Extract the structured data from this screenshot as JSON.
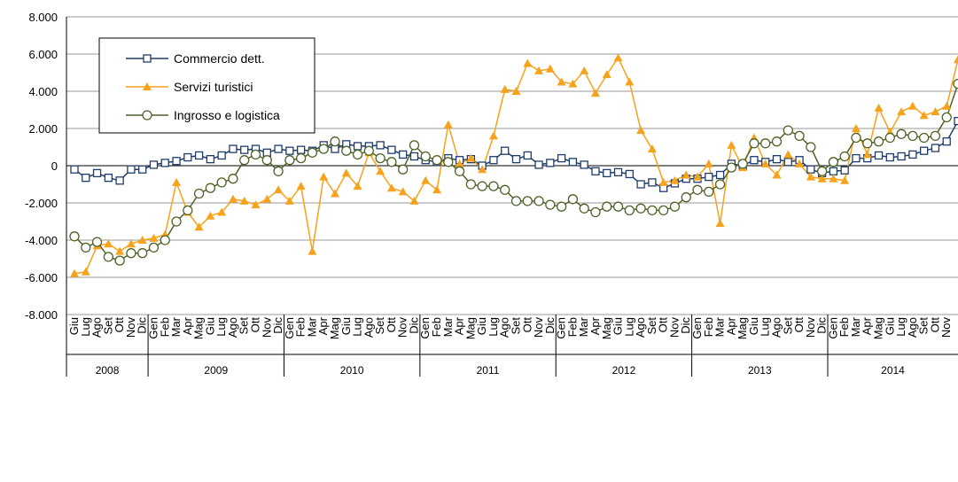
{
  "chart_data": {
    "type": "line",
    "categories": [
      "Giu",
      "Lug",
      "Ago",
      "Set",
      "Ott",
      "Nov",
      "Dic",
      "Gen",
      "Feb",
      "Mar",
      "Apr",
      "Mag",
      "Giu",
      "Lug",
      "Ago",
      "Set",
      "Ott",
      "Nov",
      "Dic",
      "Gen",
      "Feb",
      "Mar",
      "Apr",
      "Mag",
      "Giu",
      "Lug",
      "Ago",
      "Set",
      "Ott",
      "Nov",
      "Dic",
      "Gen",
      "Feb",
      "Mar",
      "Apr",
      "Mag",
      "Giu",
      "Lug",
      "Ago",
      "Set",
      "Ott",
      "Nov",
      "Dic",
      "Gen",
      "Feb",
      "Mar",
      "Apr",
      "Mag",
      "Giu",
      "Lug",
      "Ago",
      "Set",
      "Ott",
      "Nov",
      "Dic",
      "Gen",
      "Feb",
      "Mar",
      "Apr",
      "Mag",
      "Giu",
      "Lug",
      "Ago",
      "Set",
      "Ott",
      "Nov",
      "Dic",
      "Gen",
      "Feb",
      "Mar",
      "Apr",
      "Mag",
      "Giu",
      "Lug",
      "Ago",
      "Set",
      "Ott",
      "Nov",
      null
    ],
    "years": [
      "2008",
      "2009",
      "2010",
      "2011",
      "2012",
      "2013",
      "2014"
    ],
    "series": [
      {
        "name": "Commercio dett.",
        "color": "#1f3d6b",
        "marker": "square",
        "values": [
          -200,
          -650,
          -400,
          -650,
          -800,
          -200,
          -200,
          50,
          150,
          250,
          450,
          550,
          350,
          550,
          900,
          850,
          900,
          700,
          900,
          800,
          850,
          800,
          1100,
          900,
          1150,
          1050,
          1050,
          1100,
          850,
          600,
          500,
          300,
          200,
          400,
          300,
          350,
          0,
          300,
          800,
          350,
          550,
          50,
          150,
          400,
          200,
          50,
          -300,
          -400,
          -350,
          -450,
          -1000,
          -900,
          -1200,
          -950,
          -700,
          -700,
          -600,
          -500,
          100,
          0,
          300,
          200,
          350,
          200,
          300,
          -200,
          -400,
          -300,
          -250,
          400,
          400,
          550,
          450,
          500,
          600,
          800,
          950,
          1300,
          2400
        ]
      },
      {
        "name": "Servizi turistici",
        "color": "#f7a21b",
        "marker": "triangle",
        "values": [
          -5800,
          -5700,
          -4300,
          -4200,
          -4600,
          -4200,
          -4000,
          -3900,
          -3700,
          -900,
          -2500,
          -3300,
          -2700,
          -2500,
          -1800,
          -1900,
          -2100,
          -1800,
          -1300,
          -1900,
          -1100,
          -4600,
          -600,
          -1500,
          -400,
          -1100,
          700,
          -300,
          -1200,
          -1400,
          -1900,
          -800,
          -1300,
          2200,
          100,
          400,
          -200,
          1600,
          4100,
          4000,
          5500,
          5100,
          5200,
          4500,
          4400,
          5100,
          3900,
          4900,
          5800,
          4500,
          1900,
          900,
          -900,
          -800,
          -500,
          -600,
          100,
          -3100,
          1100,
          -100,
          1500,
          100,
          -500,
          600,
          100,
          -600,
          -700,
          -700,
          -800,
          2000,
          600,
          3100,
          1800,
          2900,
          3200,
          2700,
          2900,
          3200,
          5700
        ]
      },
      {
        "name": "Ingrosso e logistica",
        "color": "#4f6228",
        "marker": "circle",
        "values": [
          -3800,
          -4400,
          -4100,
          -4900,
          -5100,
          -4700,
          -4700,
          -4400,
          -4000,
          -3000,
          -2400,
          -1500,
          -1200,
          -900,
          -700,
          300,
          600,
          300,
          -300,
          300,
          400,
          700,
          900,
          1300,
          800,
          600,
          800,
          400,
          200,
          -200,
          1100,
          500,
          300,
          200,
          -300,
          -1000,
          -1100,
          -1100,
          -1300,
          -1900,
          -1900,
          -1900,
          -2100,
          -2200,
          -1800,
          -2300,
          -2500,
          -2200,
          -2200,
          -2400,
          -2300,
          -2400,
          -2400,
          -2200,
          -1700,
          -1300,
          -1400,
          -1000,
          -100,
          100,
          1200,
          1200,
          1300,
          1900,
          1600,
          1000,
          -300,
          200,
          500,
          1500,
          1200,
          1300,
          1500,
          1700,
          1600,
          1500,
          1600,
          2600,
          4400
        ]
      }
    ],
    "ylim": [
      -8000,
      8000
    ],
    "yticks": [
      {
        "value": -8000,
        "label": "-8.000"
      },
      {
        "value": -6000,
        "label": "-6.000"
      },
      {
        "value": -4000,
        "label": "-4.000"
      },
      {
        "value": -2000,
        "label": "-2.000"
      },
      0,
      {
        "value": 2000,
        "label": "2.000"
      },
      {
        "value": 4000,
        "label": "4.000"
      },
      {
        "value": 6000,
        "label": "6.000"
      },
      {
        "value": 8000,
        "label": "8.000"
      }
    ],
    "grid": true,
    "legend": "upper left"
  }
}
